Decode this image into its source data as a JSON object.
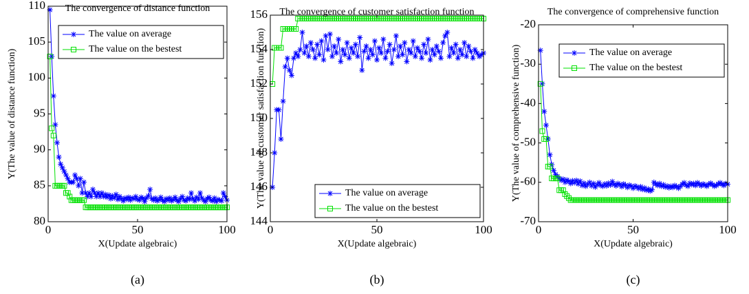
{
  "chart_data": [
    {
      "type": "line",
      "title": "The convergence of distance function",
      "xlabel": "X(Update algebraic)",
      "ylabel": "Y(The value of distance function)",
      "caption": "(a)",
      "legend": "upper right",
      "grid": false,
      "xlim": [
        0,
        100
      ],
      "xticks": [
        0,
        50,
        100
      ],
      "ylim": [
        80,
        110
      ],
      "yticks": [
        80,
        85,
        90,
        95,
        100,
        105,
        110
      ],
      "x": [
        1,
        2,
        3,
        4,
        5,
        6,
        7,
        8,
        9,
        10,
        11,
        12,
        13,
        14,
        15,
        16,
        17,
        18,
        19,
        20,
        21,
        22,
        23,
        24,
        25,
        26,
        27,
        28,
        29,
        30,
        31,
        32,
        33,
        34,
        35,
        36,
        37,
        38,
        39,
        40,
        41,
        42,
        43,
        44,
        45,
        46,
        47,
        48,
        49,
        50,
        51,
        52,
        53,
        54,
        55,
        56,
        57,
        58,
        59,
        60,
        61,
        62,
        63,
        64,
        65,
        66,
        67,
        68,
        69,
        70,
        71,
        72,
        73,
        74,
        75,
        76,
        77,
        78,
        79,
        80,
        81,
        82,
        83,
        84,
        85,
        86,
        87,
        88,
        89,
        90,
        91,
        92,
        93,
        94,
        95,
        96,
        97,
        98,
        99,
        100
      ],
      "series": [
        {
          "name": "The value on average",
          "color": "#0000ff",
          "marker": "star",
          "values": [
            109.5,
            103,
            97.5,
            93.5,
            91,
            89,
            88,
            87.5,
            87,
            86.5,
            86,
            85.5,
            85.5,
            85.5,
            86.5,
            86,
            85,
            86,
            84,
            85.5,
            84,
            83.5,
            84,
            83.5,
            84.5,
            84,
            83.5,
            84,
            83.5,
            84,
            83.5,
            83.8,
            83.4,
            83.7,
            83.2,
            83.6,
            83.3,
            83.8,
            83.1,
            83.5,
            83.2,
            82.9,
            83.3,
            83.1,
            83.4,
            83,
            83.3,
            83.2,
            83.5,
            83.1,
            83,
            83.4,
            83.2,
            82.8,
            83.3,
            83.6,
            84.5,
            83.2,
            83,
            83.3,
            82.9,
            83.1,
            83.4,
            83,
            82.8,
            83.2,
            83,
            83.3,
            82.9,
            83.1,
            83.4,
            83,
            82.8,
            83.2,
            83.5,
            83,
            82.9,
            83.3,
            83.1,
            84,
            83.2,
            82.9,
            83.4,
            83.1,
            84,
            83.3,
            83,
            82.8,
            83.2,
            83.4,
            83,
            82.9,
            83.3,
            82.8,
            83.1,
            83,
            82.9,
            84,
            83.5,
            83
          ]
        },
        {
          "name": "The value on the bestest",
          "color": "#00e000",
          "marker": "square",
          "values": [
            103,
            93,
            92,
            85,
            85,
            85,
            85,
            85,
            85,
            84,
            84,
            83.5,
            83,
            83,
            83,
            83,
            83,
            83,
            83,
            83,
            82,
            82,
            82,
            82,
            82,
            82,
            82,
            82,
            82,
            82,
            82,
            82,
            82,
            82,
            82,
            82,
            82,
            82,
            82,
            82,
            82,
            82,
            82,
            82,
            82,
            82,
            82,
            82,
            82,
            82,
            82,
            82,
            82,
            82,
            82,
            82,
            82,
            82,
            82,
            82,
            82,
            82,
            82,
            82,
            82,
            82,
            82,
            82,
            82,
            82,
            82,
            82,
            82,
            82,
            82,
            82,
            82,
            82,
            82,
            82,
            82,
            82,
            82,
            82,
            82,
            82,
            82,
            82,
            82,
            82,
            82,
            82,
            82,
            82,
            82,
            82,
            82,
            82,
            82,
            82
          ]
        }
      ]
    },
    {
      "type": "line",
      "title": "The convergence of customer satisfaction function",
      "xlabel": "X(Update algebraic)",
      "ylabel": "Y(The value of customer satisfaction function)",
      "caption": "(b)",
      "legend": "lower right",
      "grid": false,
      "xlim": [
        0,
        100
      ],
      "xticks": [
        0,
        50,
        100
      ],
      "ylim": [
        144,
        156
      ],
      "yticks": [
        144,
        146,
        148,
        150,
        152,
        154,
        156
      ],
      "x": [
        1,
        2,
        3,
        4,
        5,
        6,
        7,
        8,
        9,
        10,
        11,
        12,
        13,
        14,
        15,
        16,
        17,
        18,
        19,
        20,
        21,
        22,
        23,
        24,
        25,
        26,
        27,
        28,
        29,
        30,
        31,
        32,
        33,
        34,
        35,
        36,
        37,
        38,
        39,
        40,
        41,
        42,
        43,
        44,
        45,
        46,
        47,
        48,
        49,
        50,
        51,
        52,
        53,
        54,
        55,
        56,
        57,
        58,
        59,
        60,
        61,
        62,
        63,
        64,
        65,
        66,
        67,
        68,
        69,
        70,
        71,
        72,
        73,
        74,
        75,
        76,
        77,
        78,
        79,
        80,
        81,
        82,
        83,
        84,
        85,
        86,
        87,
        88,
        89,
        90,
        91,
        92,
        93,
        94,
        95,
        96,
        97,
        98,
        99,
        100
      ],
      "series": [
        {
          "name": "The value on average",
          "color": "#0000ff",
          "marker": "star",
          "values": [
            146,
            148,
            150.5,
            150.5,
            148.8,
            151,
            153,
            153.5,
            152.8,
            152.5,
            153.5,
            153.8,
            153.6,
            154,
            155,
            153.8,
            154.2,
            153.6,
            154.4,
            154,
            153.5,
            154.3,
            153.7,
            154.5,
            153.4,
            154.8,
            154,
            154.9,
            153.6,
            154.2,
            153.8,
            154.6,
            153.3,
            154,
            153.7,
            154.4,
            153.5,
            154.1,
            153.8,
            154.3,
            153.6,
            154.7,
            152.8,
            153.9,
            154.2,
            153.5,
            154,
            153.7,
            154.5,
            153.4,
            154.1,
            153.8,
            154.6,
            153.5,
            153.9,
            154.3,
            153.2,
            154,
            154.8,
            153.6,
            154.2,
            153.7,
            154.4,
            153.3,
            154,
            153.8,
            154.5,
            153.6,
            154.1,
            153.9,
            153.5,
            154.3,
            153.8,
            154.6,
            153.4,
            154,
            153.7,
            154.2,
            153.9,
            153.5,
            154.4,
            154.8,
            155,
            153.6,
            154.1,
            153.8,
            154.3,
            153.5,
            154,
            153.7,
            154.4,
            153.6,
            154.2,
            153.9,
            153.5,
            154,
            153.8,
            153.6,
            153.7,
            153.8
          ]
        },
        {
          "name": "The value on the bestest",
          "color": "#00e000",
          "marker": "square",
          "values": [
            152,
            154.1,
            154.1,
            154.1,
            154.1,
            155.2,
            155.2,
            155.2,
            155.2,
            155.2,
            155.2,
            155.2,
            155.8,
            155.8,
            155.8,
            155.8,
            155.8,
            155.8,
            155.8,
            155.8,
            155.8,
            155.8,
            155.8,
            155.8,
            155.8,
            155.8,
            155.8,
            155.8,
            155.8,
            155.8,
            155.8,
            155.8,
            155.8,
            155.8,
            155.8,
            155.8,
            155.8,
            155.8,
            155.8,
            155.8,
            155.8,
            155.8,
            155.8,
            155.8,
            155.8,
            155.8,
            155.8,
            155.8,
            155.8,
            155.8,
            155.8,
            155.8,
            155.8,
            155.8,
            155.8,
            155.8,
            155.8,
            155.8,
            155.8,
            155.8,
            155.8,
            155.8,
            155.8,
            155.8,
            155.8,
            155.8,
            155.8,
            155.8,
            155.8,
            155.8,
            155.8,
            155.8,
            155.8,
            155.8,
            155.8,
            155.8,
            155.8,
            155.8,
            155.8,
            155.8,
            155.8,
            155.8,
            155.8,
            155.8,
            155.8,
            155.8,
            155.8,
            155.8,
            155.8,
            155.8,
            155.8,
            155.8,
            155.8,
            155.8,
            155.8,
            155.8,
            155.8,
            155.8,
            155.8,
            155.8
          ]
        }
      ]
    },
    {
      "type": "line",
      "title": "The convergence of comprehensive function",
      "xlabel": "X(Update algebraic)",
      "ylabel": "Y(The value of comprehensive function)",
      "caption": "(c)",
      "legend": "upper right",
      "grid": false,
      "xlim": [
        0,
        100
      ],
      "xticks": [
        0,
        50,
        100
      ],
      "ylim": [
        -70,
        -20
      ],
      "yticks": [
        -70,
        -60,
        -50,
        -40,
        -30,
        -20
      ],
      "x": [
        1,
        2,
        3,
        4,
        5,
        6,
        7,
        8,
        9,
        10,
        11,
        12,
        13,
        14,
        15,
        16,
        17,
        18,
        19,
        20,
        21,
        22,
        23,
        24,
        25,
        26,
        27,
        28,
        29,
        30,
        31,
        32,
        33,
        34,
        35,
        36,
        37,
        38,
        39,
        40,
        41,
        42,
        43,
        44,
        45,
        46,
        47,
        48,
        49,
        50,
        51,
        52,
        53,
        54,
        55,
        56,
        57,
        58,
        59,
        60,
        61,
        62,
        63,
        64,
        65,
        66,
        67,
        68,
        69,
        70,
        71,
        72,
        73,
        74,
        75,
        76,
        77,
        78,
        79,
        80,
        81,
        82,
        83,
        84,
        85,
        86,
        87,
        88,
        89,
        90,
        91,
        92,
        93,
        94,
        95,
        96,
        97,
        98,
        99,
        100
      ],
      "series": [
        {
          "name": "The value on average",
          "color": "#0000ff",
          "marker": "star",
          "values": [
            -26.5,
            -35,
            -42,
            -45.5,
            -49,
            -53,
            -55.5,
            -57,
            -58,
            -58.5,
            -59,
            -59.5,
            -59.2,
            -60,
            -59.4,
            -59.8,
            -60.3,
            -59.6,
            -60.1,
            -59.5,
            -60.4,
            -59.7,
            -60.8,
            -60.2,
            -61,
            -60.5,
            -60,
            -60.9,
            -60.3,
            -61.2,
            -60.6,
            -60.1,
            -60.8,
            -61,
            -60.4,
            -60.9,
            -60.2,
            -60.7,
            -59.8,
            -60.5,
            -60.9,
            -60.3,
            -60.6,
            -61.1,
            -60.4,
            -60.8,
            -61.3,
            -60.7,
            -61,
            -61.5,
            -60.9,
            -61.2,
            -61.6,
            -61.1,
            -61.8,
            -61.4,
            -62,
            -61.7,
            -62.2,
            -61.9,
            -60,
            -60.4,
            -60.8,
            -60.3,
            -61,
            -60.6,
            -61.2,
            -60.9,
            -61.4,
            -61,
            -61.3,
            -60.8,
            -61.1,
            -61.5,
            -61,
            -60.5,
            -60.1,
            -60.7,
            -61,
            -60.2,
            -60.6,
            -60.3,
            -60.8,
            -60.1,
            -60.5,
            -60.9,
            -60.4,
            -60.7,
            -61,
            -60.5,
            -60.2,
            -60.6,
            -61,
            -60.8,
            -60.4,
            -60.1,
            -60.5,
            -60.8,
            -60.3,
            -60.5
          ]
        },
        {
          "name": "The value on the bestest",
          "color": "#00e000",
          "marker": "square",
          "values": [
            -35,
            -47,
            -49,
            -49,
            -56,
            -56,
            -59,
            -59,
            -59,
            -59,
            -62,
            -62,
            -62,
            -63,
            -63.5,
            -64,
            -64.5,
            -64.5,
            -64.5,
            -64.5,
            -64.5,
            -64.5,
            -64.5,
            -64.5,
            -64.5,
            -64.5,
            -64.5,
            -64.5,
            -64.5,
            -64.5,
            -64.5,
            -64.5,
            -64.5,
            -64.5,
            -64.5,
            -64.5,
            -64.5,
            -64.5,
            -64.5,
            -64.5,
            -64.5,
            -64.5,
            -64.5,
            -64.5,
            -64.5,
            -64.5,
            -64.5,
            -64.5,
            -64.5,
            -64.5,
            -64.5,
            -64.5,
            -64.5,
            -64.5,
            -64.5,
            -64.5,
            -64.5,
            -64.5,
            -64.5,
            -64.5,
            -64.5,
            -64.5,
            -64.5,
            -64.5,
            -64.5,
            -64.5,
            -64.5,
            -64.5,
            -64.5,
            -64.5,
            -64.5,
            -64.5,
            -64.5,
            -64.5,
            -64.5,
            -64.5,
            -64.5,
            -64.5,
            -64.5,
            -64.5,
            -64.5,
            -64.5,
            -64.5,
            -64.5,
            -64.5,
            -64.5,
            -64.5,
            -64.5,
            -64.5,
            -64.5,
            -64.5,
            -64.5,
            -64.5,
            -64.5,
            -64.5,
            -64.5,
            -64.5,
            -64.5,
            -64.5,
            -64.5
          ]
        }
      ]
    }
  ]
}
